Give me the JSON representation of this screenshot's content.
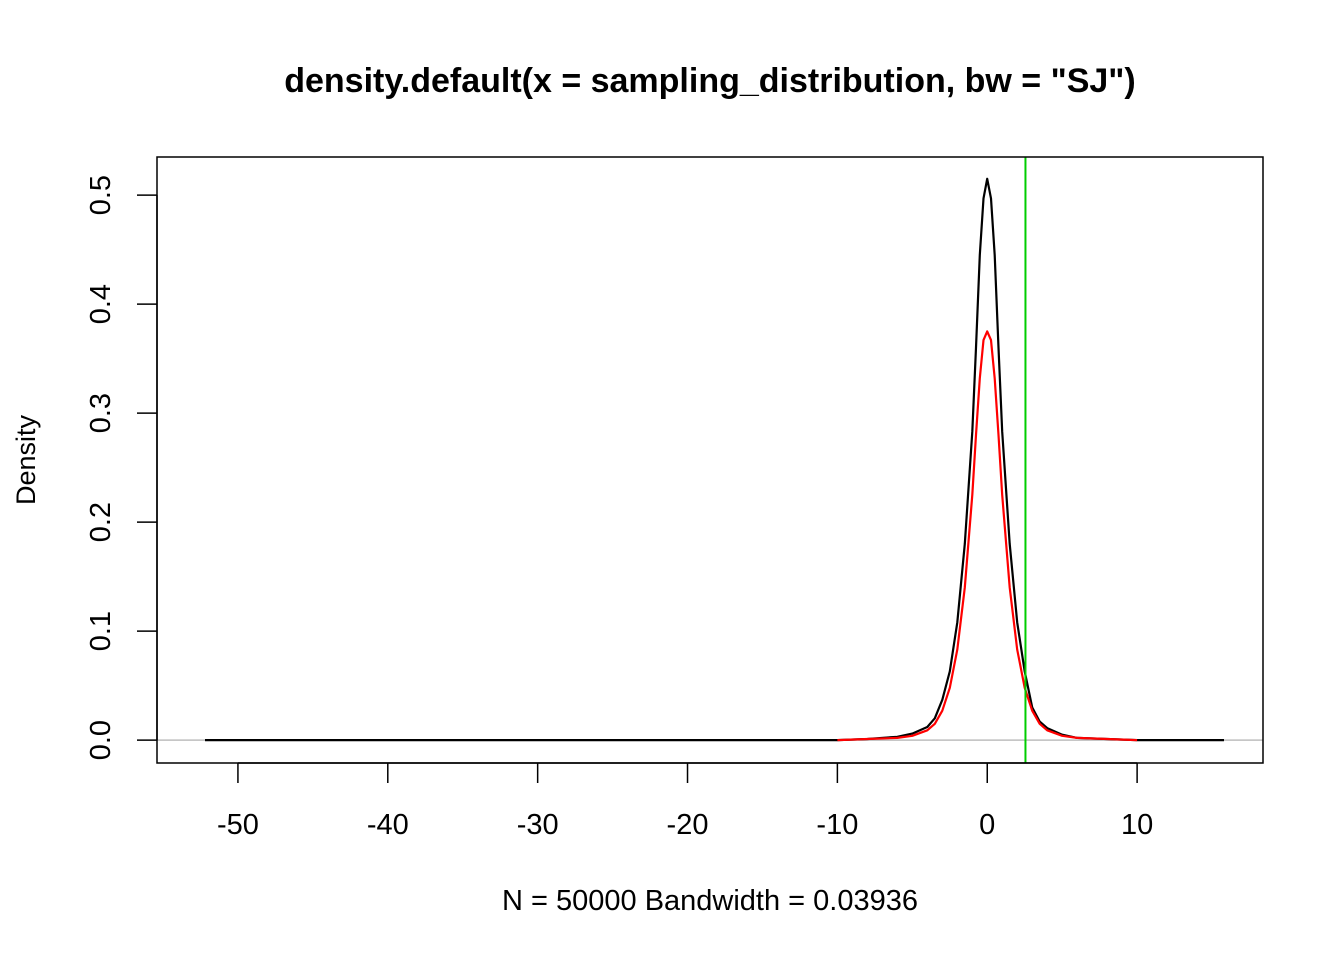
{
  "chart_data": {
    "type": "line",
    "title": "density.default(x = sampling_distribution, bw = \"SJ\")",
    "xlabel": "N = 50000   Bandwidth = 0.03936",
    "ylabel": "Density",
    "xlim": [
      -55.4,
      18.4
    ],
    "ylim": [
      -0.021,
      0.535
    ],
    "x_ticks": [
      -50,
      -40,
      -30,
      -20,
      -10,
      0,
      10
    ],
    "x_tick_labels": [
      "-50",
      "-40",
      "-30",
      "-20",
      "-10",
      "0",
      "10"
    ],
    "y_ticks": [
      0.0,
      0.1,
      0.2,
      0.3,
      0.4,
      0.5
    ],
    "y_tick_labels": [
      "0.0",
      "0.1",
      "0.2",
      "0.3",
      "0.4",
      "0.5"
    ],
    "grid": false,
    "baseline": {
      "y": 0,
      "color": "#bebebe"
    },
    "vline": {
      "x": 2.55,
      "color": "#00cd00"
    },
    "series": [
      {
        "color": "#000000",
        "x": [
          -52.2,
          -20,
          -10,
          -8,
          -6,
          -5,
          -4,
          -3.5,
          -3,
          -2.5,
          -2,
          -1.5,
          -1,
          -0.75,
          -0.5,
          -0.25,
          0,
          0.25,
          0.5,
          0.75,
          1,
          1.5,
          2,
          2.5,
          3,
          3.5,
          4,
          5,
          6,
          8,
          10,
          15.8
        ],
        "y": [
          0,
          0,
          0,
          0.001,
          0.003,
          0.006,
          0.012,
          0.02,
          0.037,
          0.063,
          0.108,
          0.18,
          0.283,
          0.36,
          0.445,
          0.497,
          0.515,
          0.497,
          0.445,
          0.36,
          0.283,
          0.18,
          0.108,
          0.063,
          0.03,
          0.017,
          0.011,
          0.005,
          0.002,
          0.001,
          0,
          0
        ]
      },
      {
        "color": "#ff0000",
        "x": [
          -10,
          -8,
          -6,
          -5,
          -4,
          -3.5,
          -3,
          -2.5,
          -2,
          -1.5,
          -1,
          -0.75,
          -0.5,
          -0.25,
          0,
          0.25,
          0.5,
          0.75,
          1,
          1.5,
          2,
          2.5,
          3,
          3.5,
          4,
          5,
          6,
          8,
          10
        ],
        "y": [
          0,
          0.001,
          0.002,
          0.004,
          0.009,
          0.015,
          0.027,
          0.048,
          0.083,
          0.14,
          0.225,
          0.28,
          0.332,
          0.367,
          0.375,
          0.367,
          0.332,
          0.28,
          0.225,
          0.14,
          0.083,
          0.048,
          0.027,
          0.015,
          0.009,
          0.004,
          0.002,
          0.001,
          0
        ]
      }
    ]
  }
}
